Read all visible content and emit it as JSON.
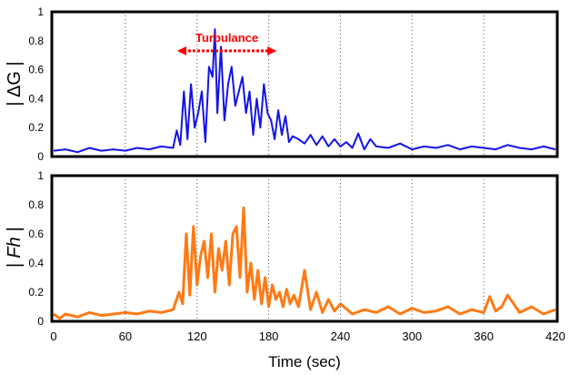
{
  "colors": {
    "top_series": "#1414e6",
    "bottom_series": "#ff7a14",
    "annotation": "#ff0000",
    "frame": "#000000",
    "grid": "#555555"
  },
  "chart_data": [
    {
      "type": "line",
      "ylabel": "| ΔG |",
      "ylim": [
        0,
        1
      ],
      "xlim": [
        0,
        420
      ],
      "y_ticks": [
        "0",
        "0.2",
        "0.4",
        "0.6",
        "0.8",
        "1"
      ],
      "x_ticks": [],
      "grid": "vertical dotted every 60 sec",
      "series": [
        {
          "color": "#1414e6",
          "x": [
            0,
            10,
            20,
            30,
            40,
            50,
            60,
            70,
            80,
            90,
            100,
            103,
            106,
            109,
            112,
            115,
            118,
            121,
            124,
            127,
            130,
            133,
            135,
            137,
            140,
            143,
            146,
            149,
            152,
            155,
            158,
            161,
            164,
            167,
            170,
            173,
            176,
            179,
            182,
            185,
            188,
            191,
            194,
            197,
            200,
            205,
            210,
            215,
            220,
            225,
            230,
            235,
            240,
            245,
            250,
            255,
            260,
            265,
            270,
            280,
            290,
            300,
            310,
            320,
            330,
            340,
            350,
            360,
            370,
            380,
            390,
            400,
            410,
            420
          ],
          "y": [
            0.04,
            0.05,
            0.03,
            0.06,
            0.04,
            0.05,
            0.04,
            0.06,
            0.05,
            0.07,
            0.06,
            0.18,
            0.08,
            0.45,
            0.12,
            0.5,
            0.2,
            0.3,
            0.45,
            0.1,
            0.62,
            0.55,
            0.88,
            0.3,
            0.76,
            0.25,
            0.5,
            0.62,
            0.35,
            0.45,
            0.55,
            0.3,
            0.45,
            0.15,
            0.4,
            0.2,
            0.5,
            0.3,
            0.25,
            0.12,
            0.32,
            0.15,
            0.28,
            0.1,
            0.14,
            0.12,
            0.09,
            0.15,
            0.08,
            0.14,
            0.07,
            0.12,
            0.07,
            0.1,
            0.06,
            0.16,
            0.05,
            0.12,
            0.07,
            0.06,
            0.09,
            0.05,
            0.07,
            0.06,
            0.08,
            0.05,
            0.07,
            0.06,
            0.05,
            0.08,
            0.06,
            0.05,
            0.07,
            0.05
          ]
        }
      ],
      "annotation": {
        "text": "Turbulance",
        "x_start": 105,
        "x_end": 185,
        "y": 0.73
      }
    },
    {
      "type": "line",
      "ylabel": "| Fh |",
      "ylim": [
        0,
        1
      ],
      "xlim": [
        0,
        420
      ],
      "xlabel": "Time (sec)",
      "y_ticks": [
        "0",
        "0.2",
        "0.4",
        "0.6",
        "0.8",
        "1"
      ],
      "x_ticks": [
        "0",
        "60",
        "120",
        "180",
        "240",
        "300",
        "360",
        "420"
      ],
      "grid": "vertical dotted every 60 sec",
      "series": [
        {
          "color": "#ff7a14",
          "x": [
            0,
            5,
            10,
            20,
            30,
            40,
            50,
            60,
            70,
            80,
            90,
            100,
            105,
            108,
            111,
            114,
            117,
            120,
            123,
            126,
            129,
            132,
            135,
            138,
            141,
            144,
            147,
            150,
            153,
            156,
            159,
            162,
            165,
            168,
            171,
            174,
            177,
            180,
            183,
            186,
            189,
            192,
            195,
            198,
            201,
            205,
            210,
            215,
            220,
            225,
            230,
            235,
            240,
            250,
            260,
            270,
            280,
            290,
            300,
            310,
            320,
            330,
            340,
            350,
            360,
            365,
            370,
            375,
            380,
            390,
            400,
            410,
            420
          ],
          "y": [
            0.05,
            0.02,
            0.05,
            0.03,
            0.06,
            0.04,
            0.05,
            0.06,
            0.05,
            0.07,
            0.06,
            0.08,
            0.2,
            0.12,
            0.6,
            0.18,
            0.65,
            0.25,
            0.45,
            0.55,
            0.3,
            0.6,
            0.2,
            0.5,
            0.35,
            0.55,
            0.25,
            0.6,
            0.65,
            0.3,
            0.78,
            0.2,
            0.4,
            0.15,
            0.35,
            0.12,
            0.3,
            0.1,
            0.25,
            0.15,
            0.2,
            0.1,
            0.22,
            0.12,
            0.18,
            0.1,
            0.35,
            0.08,
            0.2,
            0.06,
            0.15,
            0.07,
            0.12,
            0.05,
            0.08,
            0.06,
            0.1,
            0.05,
            0.09,
            0.06,
            0.07,
            0.1,
            0.05,
            0.08,
            0.06,
            0.17,
            0.07,
            0.1,
            0.18,
            0.06,
            0.1,
            0.05,
            0.08
          ]
        }
      ]
    }
  ]
}
